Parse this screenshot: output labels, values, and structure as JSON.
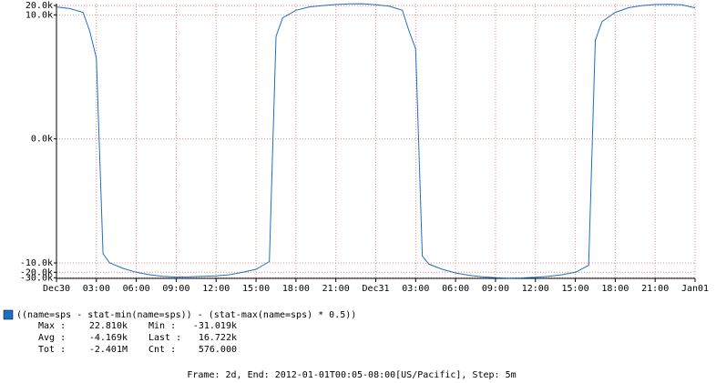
{
  "chart_data": {
    "type": "line",
    "yscale": "symlog",
    "x": [
      0,
      1,
      2,
      2.5,
      3,
      3.5,
      4,
      5,
      6,
      7,
      8,
      9,
      10,
      11,
      12,
      13,
      14,
      15,
      16,
      16.5,
      17,
      18,
      19,
      20,
      21,
      22,
      23,
      24,
      25,
      26,
      26.5,
      27,
      27.5,
      28,
      29,
      30,
      31,
      32,
      33,
      34,
      35,
      36,
      37,
      38,
      39,
      40,
      40.5,
      41,
      42,
      43,
      44,
      45,
      46,
      47,
      48
    ],
    "series": [
      {
        "name": "((name=sps - stat-min(name=sps)) - (stat-max(name=sps) * 0.5))",
        "color": "#1f6fc0",
        "values": [
          18000,
          16000,
          12000,
          3000,
          400,
          -5000,
          -10000,
          -15000,
          -20000,
          -24000,
          -27000,
          -28500,
          -28000,
          -27000,
          -26000,
          -24000,
          -20000,
          -16000,
          -9000,
          2000,
          8000,
          14000,
          18000,
          20000,
          21500,
          22500,
          22810,
          21000,
          19000,
          14000,
          3000,
          800,
          -6000,
          -11000,
          -16000,
          -21000,
          -25000,
          -28000,
          -30000,
          -31019,
          -30500,
          -29000,
          -27000,
          -24000,
          -20000,
          -12000,
          1500,
          6000,
          12000,
          17000,
          20000,
          21500,
          22000,
          21000,
          16722
        ]
      }
    ],
    "xlim": [
      0,
      48
    ],
    "xticks": [
      {
        "value": 0,
        "label": "Dec30"
      },
      {
        "value": 3,
        "label": "03:00"
      },
      {
        "value": 6,
        "label": "06:00"
      },
      {
        "value": 9,
        "label": "09:00"
      },
      {
        "value": 12,
        "label": "12:00"
      },
      {
        "value": 15,
        "label": "15:00"
      },
      {
        "value": 18,
        "label": "18:00"
      },
      {
        "value": 21,
        "label": "21:00"
      },
      {
        "value": 24,
        "label": "Dec31"
      },
      {
        "value": 27,
        "label": "03:00"
      },
      {
        "value": 30,
        "label": "06:00"
      },
      {
        "value": 33,
        "label": "09:00"
      },
      {
        "value": 36,
        "label": "12:00"
      },
      {
        "value": 39,
        "label": "15:00"
      },
      {
        "value": 42,
        "label": "18:00"
      },
      {
        "value": 45,
        "label": "21:00"
      },
      {
        "value": 48,
        "label": "Jan01"
      }
    ],
    "ylim": [
      -31500,
      23000
    ],
    "yticks": [
      {
        "value": 20000,
        "label": "20.0k"
      },
      {
        "value": 10000,
        "label": "10.0k"
      },
      {
        "value": 0,
        "label": "0.0k"
      },
      {
        "value": -10000,
        "label": "-10.0k"
      },
      {
        "value": -20000,
        "label": "-20.0k"
      },
      {
        "value": -30000,
        "label": "-30.0k"
      }
    ],
    "grid": true,
    "stats": [
      [
        {
          "label": "Max :",
          "value": "22.810k"
        },
        {
          "label": "Min  :",
          "value": "-31.019k"
        }
      ],
      [
        {
          "label": "Avg :",
          "value": "-4.169k"
        },
        {
          "label": "Last :",
          "value": "16.722k"
        }
      ],
      [
        {
          "label": "Tot :",
          "value": "-2.401M"
        },
        {
          "label": "Cnt  :",
          "value": "576.000"
        }
      ]
    ],
    "footer": "Frame: 2d, End: 2012-01-01T00:05-08:00[US/Pacific], Step: 5m"
  }
}
